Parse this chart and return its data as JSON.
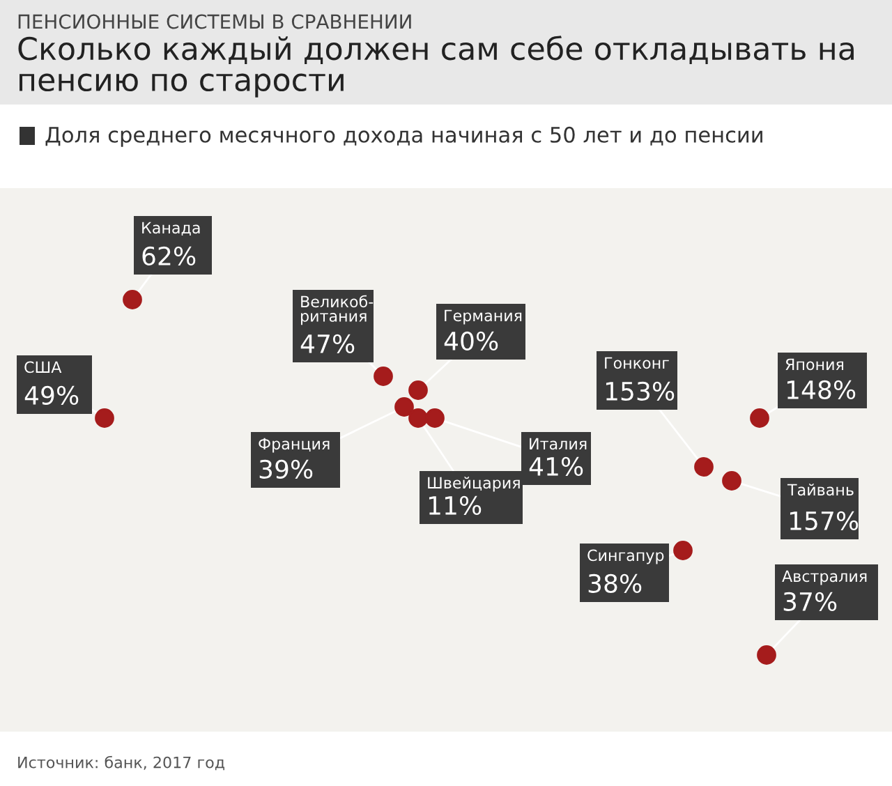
{
  "chart_data": {
    "type": "other",
    "subtitle": "ПЕНСИОННЫЕ СИСТЕМЫ В СРАВНЕНИИ",
    "title": "Сколько каждый должен сам себе откладывать на пенсию по старости",
    "legend_title": "Доля среднего месячного дохода начиная с 50 лет и до пенсии",
    "categories": [
      "Канада",
      "США",
      "Великоб-\nритания",
      "Германия",
      "Франция",
      "Швейцария",
      "Италия",
      "Гонконг",
      "Япония",
      "Тайвань",
      "Сингапур",
      "Австралия"
    ],
    "values": [
      62,
      49,
      47,
      40,
      39,
      11,
      41,
      153,
      148,
      157,
      38,
      37
    ],
    "value_labels": [
      "62%",
      "49%",
      "47%",
      "40%",
      "39%",
      "11%",
      "41%",
      "153%",
      "148%",
      "157%",
      "38%",
      "37%"
    ],
    "color": "#3a3a3a",
    "annotations": [
      "Источник: банк, 2017 год"
    ]
  }
}
